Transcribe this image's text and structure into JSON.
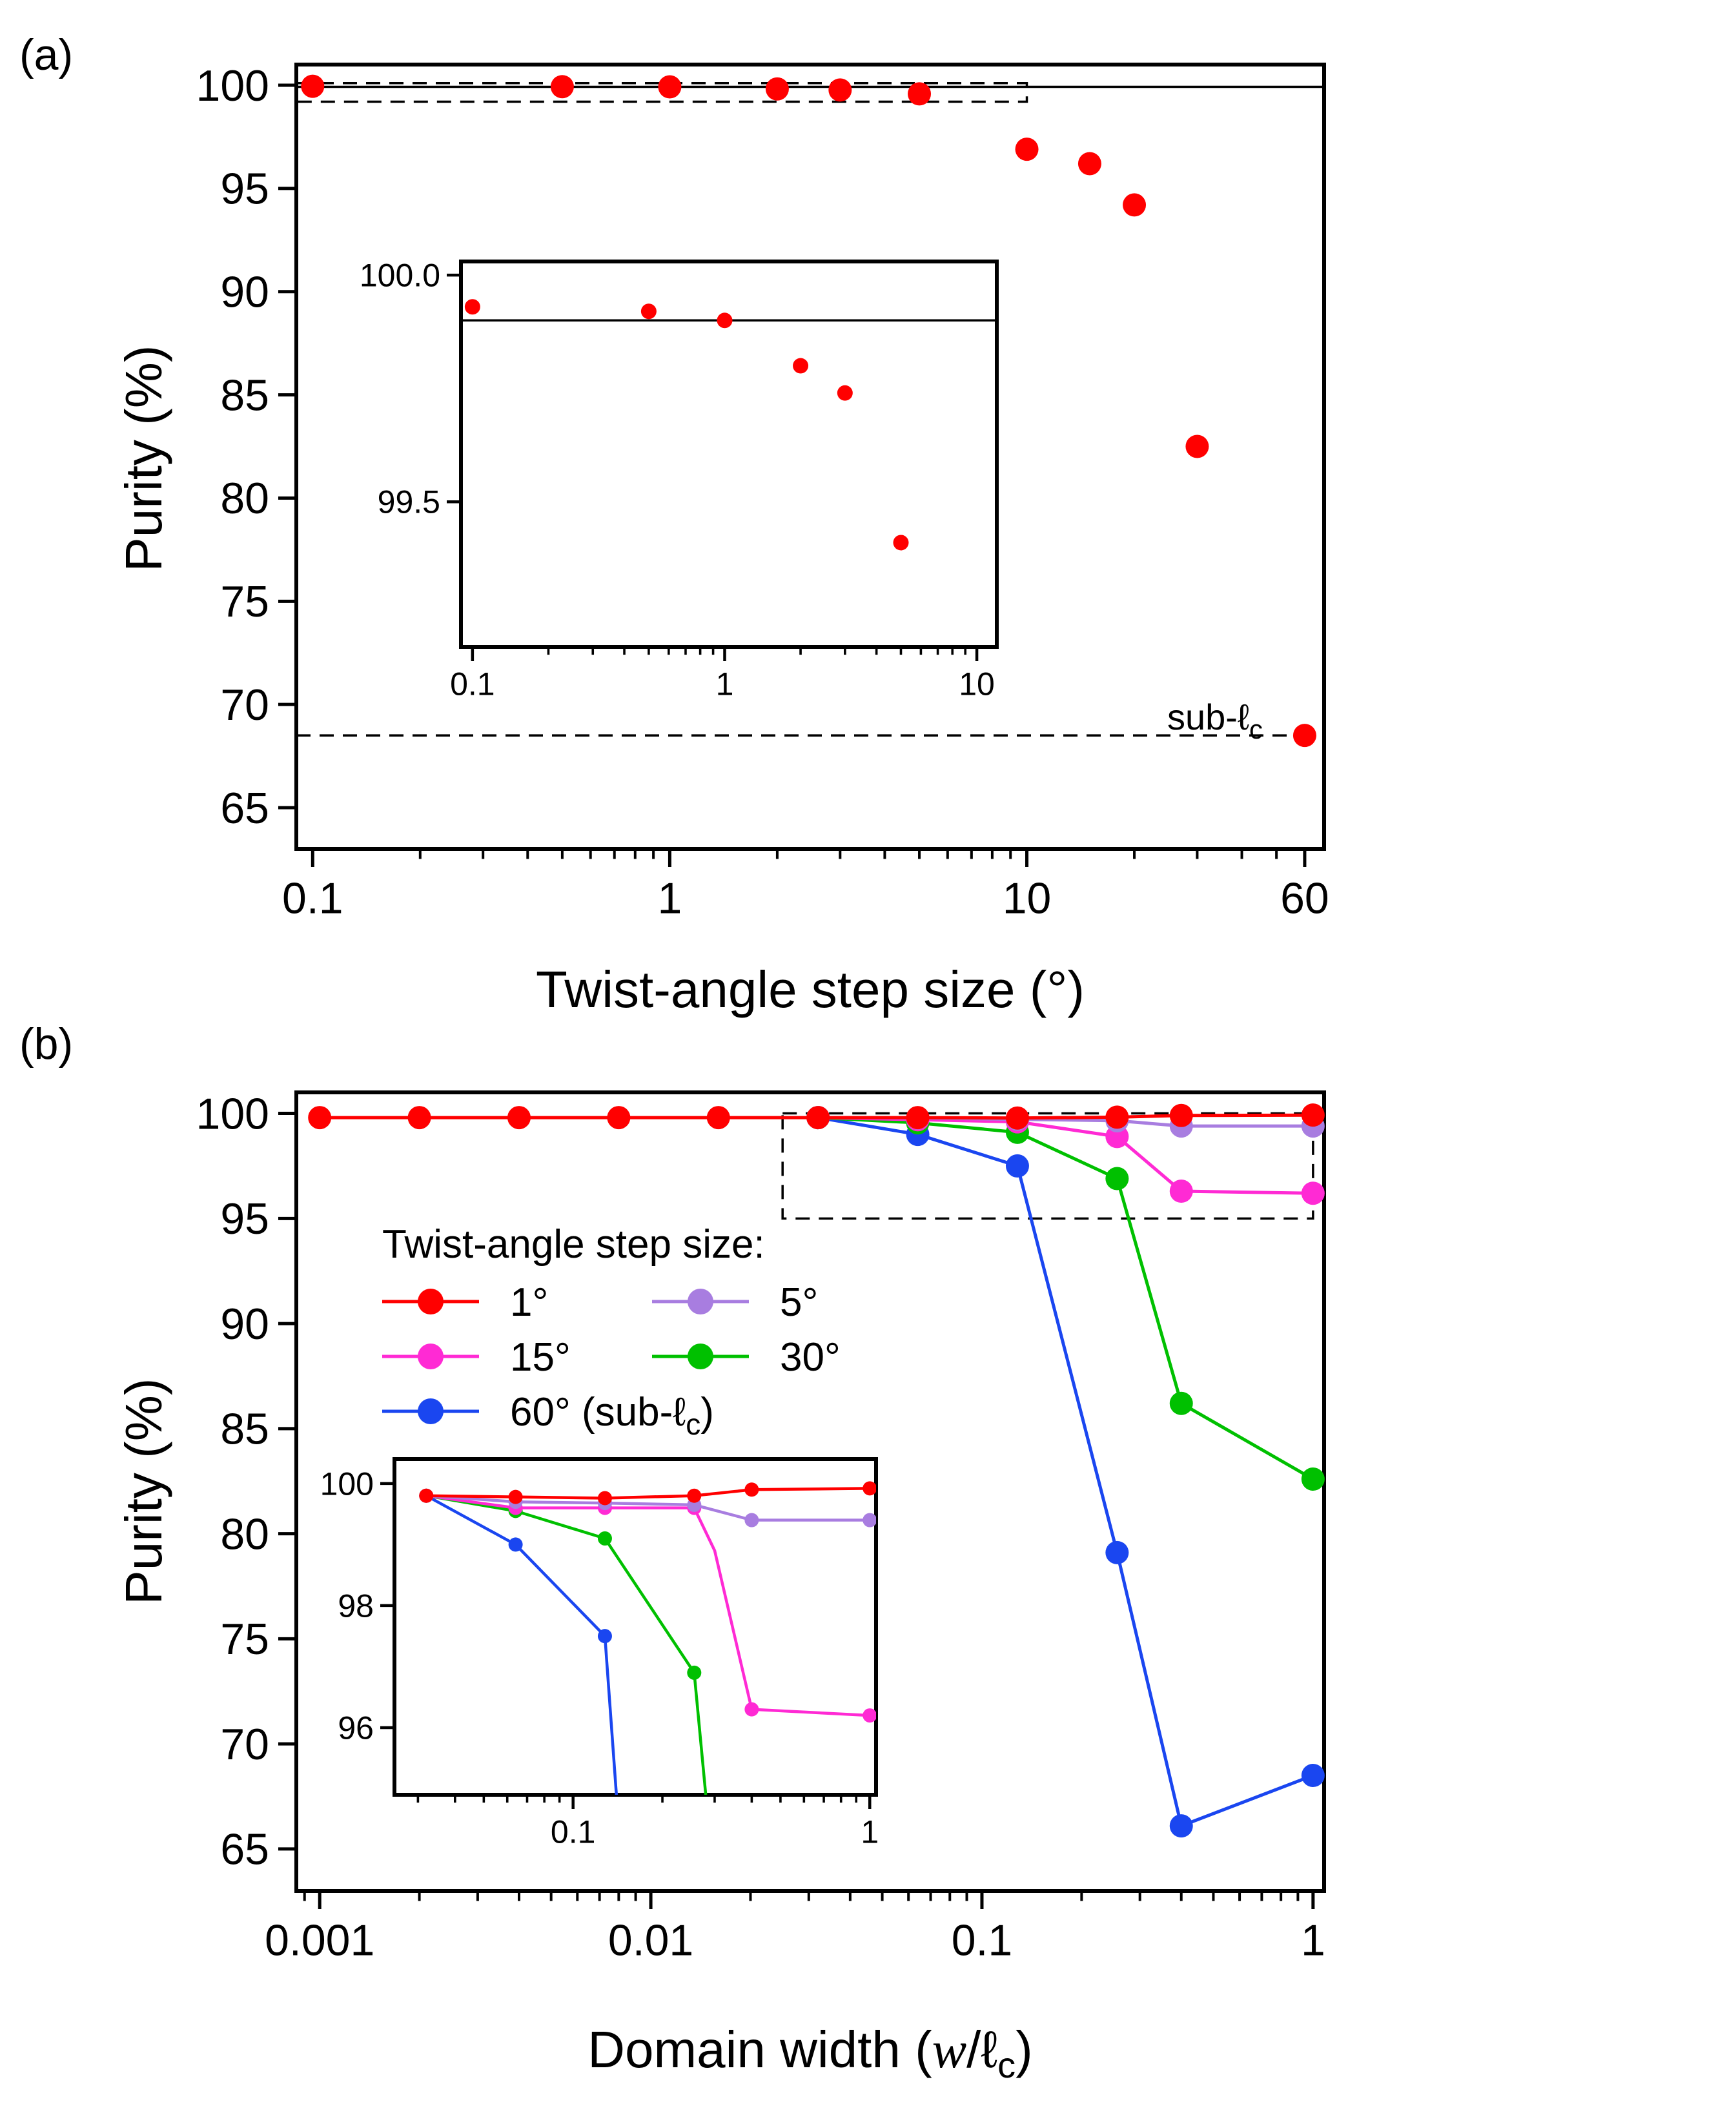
{
  "chart_data": [
    {
      "panel": "(a)",
      "type": "scatter",
      "xscale": "log",
      "xlabel": "Twist-angle step size (°)",
      "ylabel": "Purity (%)",
      "xlim": [
        0.09,
        68
      ],
      "ylim": [
        63,
        101
      ],
      "xticks": [
        0.1,
        1,
        10,
        60
      ],
      "xtick_labels": [
        "0.1",
        "1",
        "10",
        "60"
      ],
      "yticks": [
        65,
        70,
        75,
        80,
        85,
        90,
        95,
        100
      ],
      "ytick_labels": [
        "65",
        "70",
        "75",
        "80",
        "85",
        "90",
        "95",
        "100"
      ],
      "color": "#ff0000",
      "series": [
        {
          "name": "Purity",
          "x": [
            0.1,
            0.5,
            1,
            2,
            3,
            5,
            10,
            15,
            20,
            30,
            60
          ],
          "y": [
            99.95,
            99.93,
            99.92,
            99.82,
            99.77,
            99.58,
            96.9,
            96.2,
            94.2,
            82.5,
            68.5
          ]
        }
      ],
      "reference_lines": [
        {
          "style": "solid",
          "y": 99.92,
          "x_range": [
            0.09,
            68
          ]
        },
        {
          "style": "dashed",
          "y": 68.5,
          "x_range": [
            0.09,
            60
          ]
        }
      ],
      "zoom_box": {
        "style": "dashed",
        "x_range": [
          0.09,
          10
        ],
        "y_range": [
          99.2,
          100.1
        ]
      },
      "annotation": {
        "text": "sub-ℓ",
        "subscript": "c",
        "x": 60,
        "y": 68.5
      },
      "inset": {
        "type": "scatter",
        "xscale": "log",
        "xlim": [
          0.09,
          12
        ],
        "ylim": [
          99.18,
          100.03
        ],
        "xticks": [
          0.1,
          1,
          10
        ],
        "xtick_labels": [
          "0.1",
          "1",
          "10"
        ],
        "yticks": [
          99.5,
          100.0
        ],
        "ytick_labels": [
          "99.5",
          "100.0"
        ],
        "x": [
          0.1,
          0.5,
          1,
          2,
          3,
          5
        ],
        "y": [
          99.93,
          99.92,
          99.9,
          99.8,
          99.74,
          99.41
        ],
        "reference_line_y": 99.9
      }
    },
    {
      "panel": "(b)",
      "type": "line",
      "xscale": "log",
      "xlabel": "Domain width (",
      "xlabel_math": "w",
      "xlabel_rest": "/ℓ",
      "xlabel_sub": "c",
      "xlabel_close": ")",
      "ylabel": "Purity (%)",
      "xlim": [
        0.00085,
        1.08
      ],
      "ylim": [
        63,
        101
      ],
      "xticks": [
        0.001,
        0.01,
        0.1,
        1
      ],
      "xtick_labels": [
        "0.001",
        "0.01",
        "0.1",
        "1"
      ],
      "yticks": [
        65,
        70,
        75,
        80,
        85,
        90,
        95,
        100
      ],
      "ytick_labels": [
        "65",
        "70",
        "75",
        "80",
        "85",
        "90",
        "95",
        "100"
      ],
      "legend_title": "Twist-angle step size:",
      "series": [
        {
          "name": "1°",
          "color": "#ff0000",
          "x": [
            0.001,
            0.002,
            0.004,
            0.008,
            0.016,
            0.032,
            0.064,
            0.128,
            0.256,
            0.4,
            1.0
          ],
          "y": [
            99.8,
            99.8,
            99.8,
            99.8,
            99.8,
            99.8,
            99.8,
            99.78,
            99.82,
            99.9,
            99.92
          ]
        },
        {
          "name": "5°",
          "color": "#a87de0",
          "x": [
            0.032,
            0.064,
            0.128,
            0.256,
            0.4,
            1.0
          ],
          "y": [
            99.8,
            99.78,
            99.72,
            99.65,
            99.4,
            99.4
          ]
        },
        {
          "name": "15°",
          "color": "#ff2ad4",
          "x": [
            0.032,
            0.064,
            0.128,
            0.256,
            0.4,
            1.0
          ],
          "y": [
            99.8,
            99.7,
            99.6,
            98.9,
            96.3,
            96.2
          ]
        },
        {
          "name": "30°",
          "color": "#00c000",
          "x": [
            0.032,
            0.064,
            0.128,
            0.256,
            0.4,
            1.0
          ],
          "y": [
            99.8,
            99.55,
            99.1,
            96.9,
            86.2,
            82.6
          ]
        },
        {
          "name": "60° (sub-ℓ",
          "name_sub": "c",
          "name_close": ")",
          "color": "#1a46f0",
          "x": [
            0.032,
            0.064,
            0.128,
            0.256,
            0.4,
            1.0
          ],
          "y": [
            99.8,
            99.0,
            97.5,
            79.1,
            66.1,
            68.5
          ]
        }
      ],
      "zoom_box": {
        "style": "dashed",
        "x_range": [
          0.025,
          1.0
        ],
        "y_range": [
          95.0,
          100.0
        ]
      },
      "inset": {
        "type": "line",
        "xscale": "log",
        "xlim": [
          0.025,
          1.05
        ],
        "ylim": [
          94.9,
          100.4
        ],
        "xticks": [
          0.1,
          1
        ],
        "xtick_labels": [
          "0.1",
          "1"
        ],
        "yticks": [
          96,
          98,
          100
        ],
        "ytick_labels": [
          "96",
          "98",
          "100"
        ],
        "series": [
          {
            "name": "1°",
            "x": [
              0.032,
              0.064,
              0.128,
              0.256,
              0.4,
              1.0
            ],
            "y": [
              99.8,
              99.78,
              99.76,
              99.8,
              99.9,
              99.92
            ]
          },
          {
            "name": "5°",
            "x": [
              0.032,
              0.064,
              0.128,
              0.256,
              0.4,
              1.0
            ],
            "y": [
              99.8,
              99.7,
              99.68,
              99.65,
              99.4,
              99.4
            ]
          },
          {
            "name": "15°",
            "x": [
              0.032,
              0.064,
              0.128,
              0.256,
              0.3,
              0.4,
              1.0
            ],
            "y": [
              99.8,
              99.6,
              99.6,
              99.6,
              98.9,
              96.3,
              96.2
            ]
          },
          {
            "name": "30°",
            "x": [
              0.032,
              0.064,
              0.128,
              0.256,
              0.28
            ],
            "y": [
              99.8,
              99.55,
              99.1,
              96.9,
              94.9
            ]
          },
          {
            "name": "60° (sub-ℓc)",
            "x": [
              0.032,
              0.064,
              0.128,
              0.14
            ],
            "y": [
              99.8,
              99.0,
              97.5,
              94.9
            ]
          }
        ]
      }
    }
  ]
}
